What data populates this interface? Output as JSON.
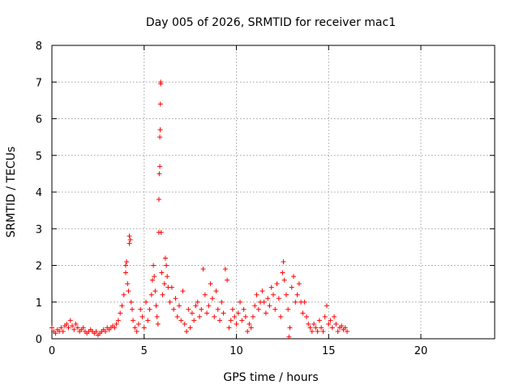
{
  "chart_data": {
    "type": "scatter",
    "title": "Day 005 of 2026, SRMTID for receiver mac1",
    "xlabel": "GPS time / hours",
    "ylabel": "SRMTID / TECUs",
    "xlim": [
      0,
      24
    ],
    "ylim": [
      0,
      8
    ],
    "xticks": [
      0,
      5,
      10,
      15,
      20
    ],
    "yticks": [
      0,
      1,
      2,
      3,
      4,
      5,
      6,
      7,
      8
    ],
    "grid": true,
    "marker": "+",
    "color": "#ff0000",
    "series": [
      {
        "name": "mac1",
        "points": [
          [
            0.0,
            0.3
          ],
          [
            0.1,
            0.2
          ],
          [
            0.2,
            0.15
          ],
          [
            0.3,
            0.25
          ],
          [
            0.4,
            0.2
          ],
          [
            0.5,
            0.3
          ],
          [
            0.6,
            0.2
          ],
          [
            0.7,
            0.35
          ],
          [
            0.8,
            0.4
          ],
          [
            0.9,
            0.3
          ],
          [
            1.0,
            0.5
          ],
          [
            1.1,
            0.35
          ],
          [
            1.2,
            0.25
          ],
          [
            1.3,
            0.4
          ],
          [
            1.4,
            0.3
          ],
          [
            1.5,
            0.2
          ],
          [
            1.6,
            0.25
          ],
          [
            1.7,
            0.3
          ],
          [
            1.8,
            0.2
          ],
          [
            1.9,
            0.15
          ],
          [
            2.0,
            0.2
          ],
          [
            2.1,
            0.25
          ],
          [
            2.2,
            0.2
          ],
          [
            2.3,
            0.15
          ],
          [
            2.4,
            0.2
          ],
          [
            2.5,
            0.1
          ],
          [
            2.6,
            0.15
          ],
          [
            2.7,
            0.2
          ],
          [
            2.8,
            0.25
          ],
          [
            2.9,
            0.2
          ],
          [
            3.0,
            0.3
          ],
          [
            3.1,
            0.25
          ],
          [
            3.2,
            0.3
          ],
          [
            3.3,
            0.35
          ],
          [
            3.4,
            0.3
          ],
          [
            3.5,
            0.4
          ],
          [
            3.6,
            0.5
          ],
          [
            3.7,
            0.7
          ],
          [
            3.8,
            0.9
          ],
          [
            3.9,
            1.2
          ],
          [
            4.0,
            2.0
          ],
          [
            4.0,
            1.8
          ],
          [
            4.05,
            2.1
          ],
          [
            4.1,
            1.5
          ],
          [
            4.15,
            1.3
          ],
          [
            4.2,
            2.8
          ],
          [
            4.2,
            2.6
          ],
          [
            4.25,
            2.7
          ],
          [
            4.3,
            1.0
          ],
          [
            4.35,
            0.8
          ],
          [
            4.4,
            0.5
          ],
          [
            4.5,
            0.3
          ],
          [
            4.6,
            0.2
          ],
          [
            4.7,
            0.4
          ],
          [
            4.8,
            0.8
          ],
          [
            4.9,
            0.6
          ],
          [
            5.0,
            0.3
          ],
          [
            5.1,
            1.0
          ],
          [
            5.2,
            0.5
          ],
          [
            5.3,
            0.8
          ],
          [
            5.4,
            1.2
          ],
          [
            5.45,
            1.6
          ],
          [
            5.5,
            2.0
          ],
          [
            5.55,
            1.7
          ],
          [
            5.6,
            1.3
          ],
          [
            5.65,
            0.9
          ],
          [
            5.7,
            0.6
          ],
          [
            5.75,
            0.4
          ],
          [
            5.8,
            2.9
          ],
          [
            5.8,
            3.8
          ],
          [
            5.82,
            4.5
          ],
          [
            5.85,
            4.7
          ],
          [
            5.85,
            5.5
          ],
          [
            5.87,
            5.7
          ],
          [
            5.88,
            6.4
          ],
          [
            5.9,
            6.95
          ],
          [
            5.9,
            7.0
          ],
          [
            5.92,
            2.9
          ],
          [
            5.95,
            1.8
          ],
          [
            6.0,
            1.2
          ],
          [
            6.1,
            1.5
          ],
          [
            6.15,
            2.2
          ],
          [
            6.2,
            2.0
          ],
          [
            6.25,
            1.7
          ],
          [
            6.3,
            1.4
          ],
          [
            6.4,
            1.0
          ],
          [
            6.5,
            1.4
          ],
          [
            6.6,
            0.8
          ],
          [
            6.7,
            1.1
          ],
          [
            6.8,
            0.6
          ],
          [
            6.9,
            0.9
          ],
          [
            7.0,
            0.5
          ],
          [
            7.1,
            1.3
          ],
          [
            7.2,
            0.4
          ],
          [
            7.3,
            0.2
          ],
          [
            7.4,
            0.8
          ],
          [
            7.5,
            0.3
          ],
          [
            7.6,
            0.7
          ],
          [
            7.7,
            0.5
          ],
          [
            7.8,
            0.9
          ],
          [
            7.9,
            1.0
          ],
          [
            8.0,
            0.6
          ],
          [
            8.1,
            0.8
          ],
          [
            8.2,
            1.9
          ],
          [
            8.3,
            1.2
          ],
          [
            8.4,
            0.7
          ],
          [
            8.5,
            0.9
          ],
          [
            8.6,
            1.5
          ],
          [
            8.7,
            1.1
          ],
          [
            8.8,
            0.6
          ],
          [
            8.9,
            1.3
          ],
          [
            9.0,
            0.8
          ],
          [
            9.1,
            0.5
          ],
          [
            9.2,
            1.0
          ],
          [
            9.3,
            0.7
          ],
          [
            9.4,
            1.9
          ],
          [
            9.5,
            1.6
          ],
          [
            9.6,
            0.3
          ],
          [
            9.7,
            0.5
          ],
          [
            9.8,
            0.8
          ],
          [
            9.9,
            0.6
          ],
          [
            10.0,
            0.4
          ],
          [
            10.1,
            0.7
          ],
          [
            10.2,
            1.0
          ],
          [
            10.3,
            0.5
          ],
          [
            10.4,
            0.8
          ],
          [
            10.5,
            0.6
          ],
          [
            10.6,
            0.2
          ],
          [
            10.7,
            0.4
          ],
          [
            10.8,
            0.3
          ],
          [
            10.9,
            0.6
          ],
          [
            11.0,
            0.9
          ],
          [
            11.1,
            1.2
          ],
          [
            11.2,
            0.8
          ],
          [
            11.3,
            1.0
          ],
          [
            11.4,
            1.3
          ],
          [
            11.5,
            1.0
          ],
          [
            11.6,
            0.7
          ],
          [
            11.7,
            1.1
          ],
          [
            11.8,
            0.9
          ],
          [
            11.9,
            1.4
          ],
          [
            12.0,
            1.2
          ],
          [
            12.1,
            0.8
          ],
          [
            12.2,
            1.5
          ],
          [
            12.3,
            1.1
          ],
          [
            12.4,
            0.6
          ],
          [
            12.5,
            1.8
          ],
          [
            12.55,
            2.1
          ],
          [
            12.6,
            1.6
          ],
          [
            12.7,
            1.2
          ],
          [
            12.8,
            0.8
          ],
          [
            12.85,
            0.05
          ],
          [
            12.9,
            0.3
          ],
          [
            13.0,
            1.4
          ],
          [
            13.1,
            1.7
          ],
          [
            13.2,
            1.0
          ],
          [
            13.3,
            1.2
          ],
          [
            13.4,
            1.5
          ],
          [
            13.5,
            1.0
          ],
          [
            13.6,
            0.7
          ],
          [
            13.7,
            1.0
          ],
          [
            13.8,
            0.6
          ],
          [
            13.9,
            0.4
          ],
          [
            14.0,
            0.3
          ],
          [
            14.1,
            0.2
          ],
          [
            14.2,
            0.4
          ],
          [
            14.3,
            0.3
          ],
          [
            14.4,
            0.2
          ],
          [
            14.5,
            0.5
          ],
          [
            14.6,
            0.3
          ],
          [
            14.7,
            0.2
          ],
          [
            14.8,
            0.6
          ],
          [
            14.9,
            0.9
          ],
          [
            15.0,
            0.4
          ],
          [
            15.1,
            0.5
          ],
          [
            15.2,
            0.3
          ],
          [
            15.3,
            0.6
          ],
          [
            15.4,
            0.4
          ],
          [
            15.5,
            0.2
          ],
          [
            15.6,
            0.3
          ],
          [
            15.7,
            0.35
          ],
          [
            15.8,
            0.25
          ],
          [
            15.9,
            0.3
          ],
          [
            16.0,
            0.2
          ]
        ]
      }
    ]
  }
}
